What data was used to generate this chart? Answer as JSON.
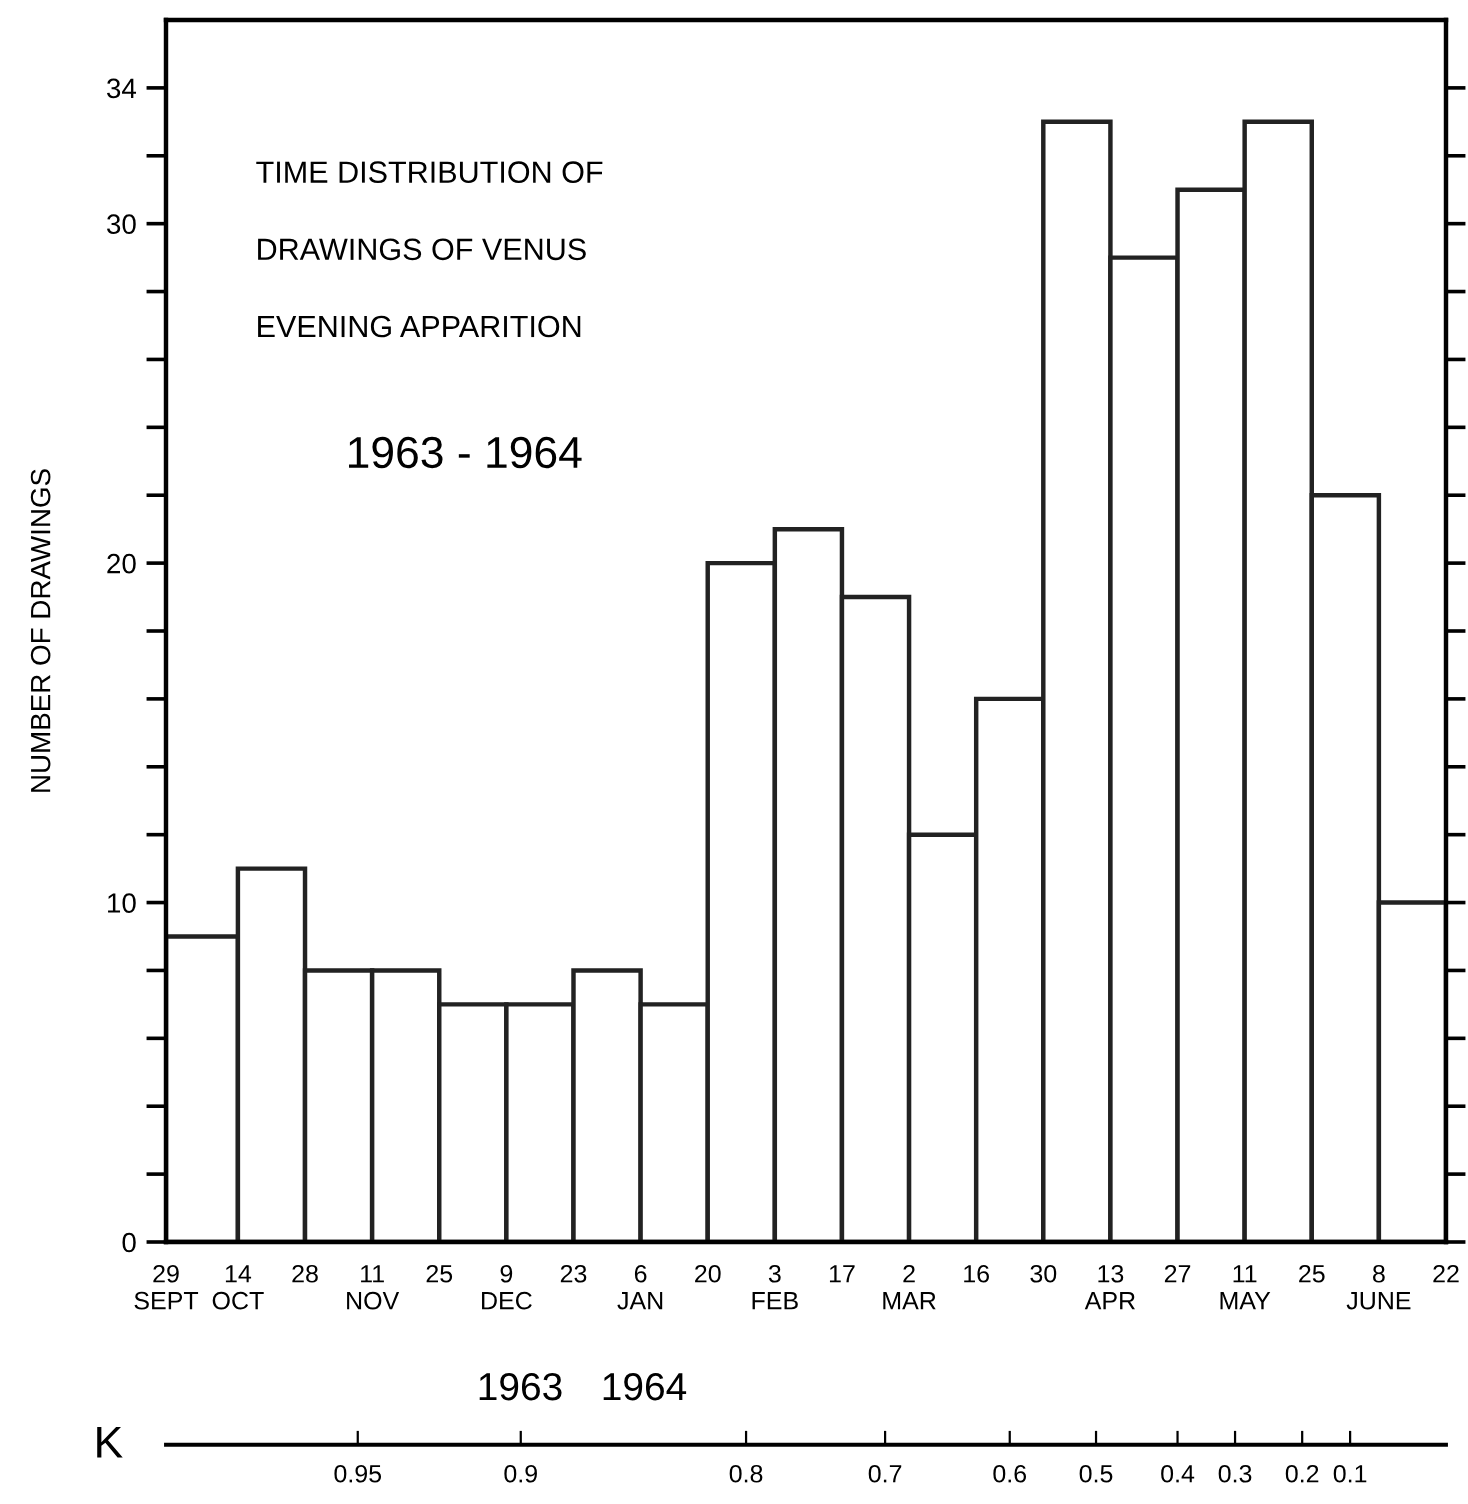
{
  "chart_data": {
    "type": "histogram",
    "title": "TIME DISTRIBUTION OF\nDRAWINGS OF VENUS\nEVENING APPARITION",
    "subtitle": "1963 - 1964",
    "ylabel": "NUMBER OF DRAWINGS",
    "bins": [
      "1963-09-29",
      "1963-10-14",
      "1963-10-28",
      "1963-11-11",
      "1963-11-25",
      "1963-12-09",
      "1963-12-23",
      "1964-01-06",
      "1964-01-20",
      "1964-02-03",
      "1964-02-17",
      "1964-03-02",
      "1964-03-16",
      "1964-03-30",
      "1964-04-13",
      "1964-04-27",
      "1964-05-11",
      "1964-05-25",
      "1964-06-08",
      "1964-06-22"
    ],
    "values": [
      9,
      11,
      8,
      8,
      7,
      7,
      8,
      7,
      20,
      21,
      19,
      12,
      16,
      33,
      29,
      31,
      33,
      22,
      10
    ],
    "color": "#ffffff",
    "grid": false,
    "xlim": [
      "1963-09-29",
      "1964-06-22"
    ],
    "xticks": [
      {
        "value": "1963-09-29",
        "label": "29\nSEPT"
      },
      {
        "value": "1963-10-14",
        "label": "14\nOCT"
      },
      {
        "value": "1963-10-28",
        "label": "28"
      },
      {
        "value": "1963-11-11",
        "label": "11\nNOV"
      },
      {
        "value": "1963-11-25",
        "label": "25"
      },
      {
        "value": "1963-12-09",
        "label": "9\nDEC"
      },
      {
        "value": "1963-12-23",
        "label": "23"
      },
      {
        "value": "1964-01-06",
        "label": "6\nJAN"
      },
      {
        "value": "1964-01-20",
        "label": "20"
      },
      {
        "value": "1964-02-03",
        "label": "3\nFEB"
      },
      {
        "value": "1964-02-17",
        "label": "17"
      },
      {
        "value": "1964-03-02",
        "label": "2\nMAR"
      },
      {
        "value": "1964-03-16",
        "label": "16"
      },
      {
        "value": "1964-03-30",
        "label": "30"
      },
      {
        "value": "1964-04-13",
        "label": "13\nAPR"
      },
      {
        "value": "1964-04-27",
        "label": "27"
      },
      {
        "value": "1964-05-11",
        "label": "11\nMAY"
      },
      {
        "value": "1964-05-25",
        "label": "25"
      },
      {
        "value": "1964-06-08",
        "label": "8\nJUNE"
      },
      {
        "value": "1964-06-22",
        "label": "22"
      }
    ],
    "ylim": [
      0,
      36
    ],
    "yticks": [
      0,
      {
        "value": 2,
        "label": null
      },
      {
        "value": 4,
        "label": null
      },
      {
        "value": 6,
        "label": null
      },
      {
        "value": 8,
        "label": null
      },
      10,
      {
        "value": 12,
        "label": null
      },
      {
        "value": 14,
        "label": null
      },
      {
        "value": 16,
        "label": null
      },
      {
        "value": 18,
        "label": null
      },
      20,
      {
        "value": 22,
        "label": null
      },
      {
        "value": 24,
        "label": null
      },
      {
        "value": 26,
        "label": null
      },
      {
        "value": 28,
        "label": null
      },
      30,
      {
        "value": 32,
        "label": null
      },
      34
    ],
    "x2label": "K",
    "x2lim": [
      "1963-09-29",
      "1964-06-22"
    ],
    "x2ticks": [
      {
        "value": "1963-11-08",
        "label": "0.95"
      },
      {
        "value": "1963-12-12",
        "label": "0.9"
      },
      {
        "value": "1964-01-28",
        "label": "0.8"
      },
      {
        "value": "1964-02-26",
        "label": "0.7"
      },
      {
        "value": "1964-03-23",
        "label": "0.6"
      },
      {
        "value": "1964-04-10",
        "label": "0.5"
      },
      {
        "value": "1964-04-27",
        "label": "0.4"
      },
      {
        "value": "1964-05-09",
        "label": "0.3"
      },
      {
        "value": "1964-05-23",
        "label": "0.2"
      },
      {
        "value": "1964-06-02",
        "label": "0.1"
      }
    ],
    "annotations": [
      "1963",
      "1964"
    ]
  }
}
